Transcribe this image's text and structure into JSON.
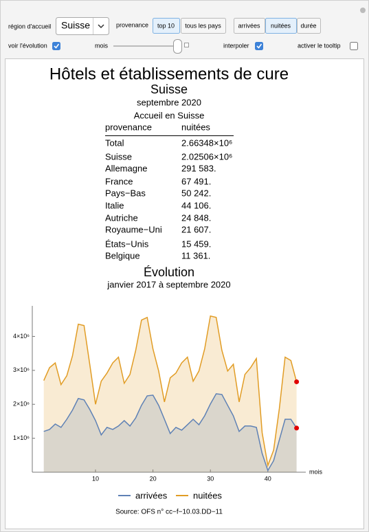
{
  "controls": {
    "region_label": "région d'accueil",
    "region_value": "Suisse",
    "provenance_label": "provenance",
    "provenance_options": [
      "top 10",
      "tous les pays"
    ],
    "provenance_selected": 0,
    "measure_options": [
      "arrivées",
      "nuitées",
      "durée"
    ],
    "measure_selected": 1,
    "evolution_label": "voir l'évolution",
    "evolution_checked": true,
    "month_label": "mois",
    "interpolate_label": "interpoler",
    "interpolate_checked": true,
    "tooltip_label": "activer le tooltip",
    "tooltip_checked": false
  },
  "header": {
    "title": "Hôtels et établissements de cure",
    "region": "Suisse",
    "date": "septembre 2020",
    "table_caption": "Accueil en Suisse"
  },
  "table": {
    "columns": [
      "provenance",
      "nuitées"
    ],
    "rows": [
      [
        "Total",
        "2.66348×10⁶"
      ],
      [
        "Suisse",
        "2.02506×10⁶"
      ],
      [
        "Allemagne",
        "291 583."
      ],
      [
        "France",
        "67 491."
      ],
      [
        "Pays−Bas",
        "50 242."
      ],
      [
        "Italie",
        "44 106."
      ],
      [
        "Autriche",
        "24 848."
      ],
      [
        "Royaume−Uni",
        "21 607."
      ],
      [
        "États−Unis",
        "15 459."
      ],
      [
        "Belgique",
        "11 361."
      ]
    ]
  },
  "evolution": {
    "title": "Évolution",
    "subtitle": "janvier 2017 à septembre 2020"
  },
  "chart_data": {
    "type": "area",
    "x_label": "mois",
    "x": [
      1,
      2,
      3,
      4,
      5,
      6,
      7,
      8,
      9,
      10,
      11,
      12,
      13,
      14,
      15,
      16,
      17,
      18,
      19,
      20,
      21,
      22,
      23,
      24,
      25,
      26,
      27,
      28,
      29,
      30,
      31,
      32,
      33,
      34,
      35,
      36,
      37,
      38,
      39,
      40,
      41,
      42,
      43,
      44,
      45
    ],
    "series": [
      {
        "name": "arrivées",
        "color": "#5e81b5",
        "values": [
          1200000,
          1260000,
          1420000,
          1320000,
          1560000,
          1830000,
          2170000,
          2130000,
          1850000,
          1520000,
          1100000,
          1320000,
          1260000,
          1360000,
          1520000,
          1360000,
          1600000,
          1970000,
          2250000,
          2270000,
          1970000,
          1560000,
          1140000,
          1320000,
          1240000,
          1400000,
          1560000,
          1400000,
          1660000,
          2010000,
          2310000,
          2290000,
          1970000,
          1660000,
          1200000,
          1360000,
          1360000,
          1320000,
          550000,
          50000,
          340000,
          950000,
          1560000,
          1560000,
          1300000
        ]
      },
      {
        "name": "nuitées",
        "color": "#e19c24",
        "values": [
          2700000,
          3080000,
          3220000,
          2580000,
          2840000,
          3430000,
          4360000,
          4320000,
          3180000,
          2000000,
          2680000,
          2920000,
          3220000,
          3390000,
          2620000,
          2880000,
          3590000,
          4480000,
          4560000,
          3630000,
          2980000,
          2070000,
          2780000,
          2920000,
          3220000,
          3390000,
          2680000,
          2980000,
          3630000,
          4600000,
          4560000,
          3590000,
          2980000,
          3180000,
          2070000,
          2880000,
          3080000,
          3350000,
          1160000,
          200000,
          650000,
          1870000,
          3390000,
          3290000,
          2663480
        ]
      }
    ],
    "end_marker_color": "#e00000",
    "xlim": [
      -1,
      46.6
    ],
    "xticks": [
      10,
      20,
      30,
      40
    ],
    "ylim": [
      0,
      4900000
    ],
    "yticks": [
      {
        "value": 1000000,
        "label": "1×10⁶"
      },
      {
        "value": 2000000,
        "label": "2×10⁶"
      },
      {
        "value": 3000000,
        "label": "3×10⁶"
      },
      {
        "value": 4000000,
        "label": "4×10⁶"
      }
    ]
  },
  "source": "Source: OFS n° cc−f−10.03.DD−11"
}
